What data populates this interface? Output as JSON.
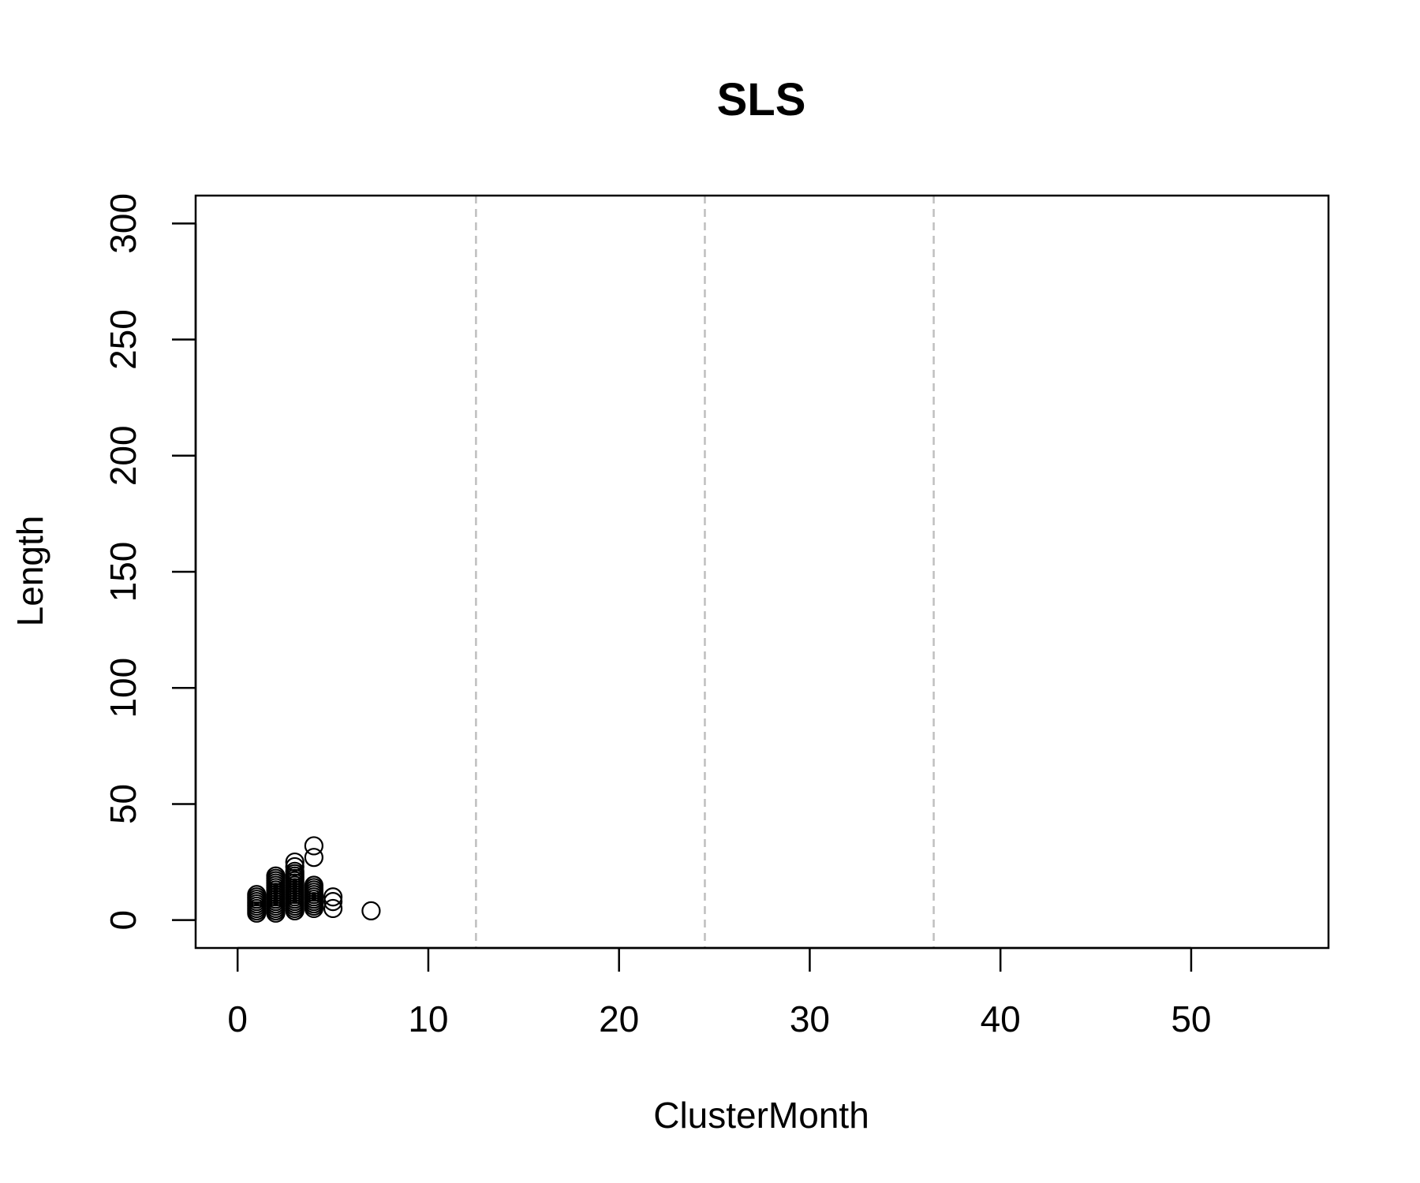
{
  "chart_data": {
    "type": "scatter",
    "title": "SLS",
    "xlabel": "ClusterMonth",
    "ylabel": "Length",
    "xlim": [
      -2.2,
      57.2
    ],
    "ylim": [
      -12,
      312
    ],
    "x_ticks": [
      0,
      10,
      20,
      30,
      40,
      50
    ],
    "y_ticks": [
      0,
      50,
      100,
      150,
      200,
      250,
      300
    ],
    "x_tick_labels": [
      "0",
      "10",
      "20",
      "30",
      "40",
      "50"
    ],
    "y_tick_labels": [
      "0",
      "50",
      "100",
      "150",
      "200",
      "250",
      "300"
    ],
    "vlines": [
      12.5,
      24.5,
      36.5
    ],
    "grid": false,
    "marker": "open-circle",
    "points": [
      {
        "x": 1,
        "y": 3
      },
      {
        "x": 1,
        "y": 4
      },
      {
        "x": 1,
        "y": 5
      },
      {
        "x": 1,
        "y": 6
      },
      {
        "x": 1,
        "y": 7
      },
      {
        "x": 1,
        "y": 8
      },
      {
        "x": 1,
        "y": 9
      },
      {
        "x": 1,
        "y": 10
      },
      {
        "x": 1,
        "y": 11
      },
      {
        "x": 2,
        "y": 3
      },
      {
        "x": 2,
        "y": 4
      },
      {
        "x": 2,
        "y": 5
      },
      {
        "x": 2,
        "y": 6
      },
      {
        "x": 2,
        "y": 7
      },
      {
        "x": 2,
        "y": 8
      },
      {
        "x": 2,
        "y": 9
      },
      {
        "x": 2,
        "y": 10
      },
      {
        "x": 2,
        "y": 11
      },
      {
        "x": 2,
        "y": 12
      },
      {
        "x": 2,
        "y": 13
      },
      {
        "x": 2,
        "y": 14
      },
      {
        "x": 2,
        "y": 15
      },
      {
        "x": 2,
        "y": 16
      },
      {
        "x": 2,
        "y": 17
      },
      {
        "x": 2,
        "y": 18
      },
      {
        "x": 2,
        "y": 19
      },
      {
        "x": 3,
        "y": 4
      },
      {
        "x": 3,
        "y": 5
      },
      {
        "x": 3,
        "y": 6
      },
      {
        "x": 3,
        "y": 7
      },
      {
        "x": 3,
        "y": 8
      },
      {
        "x": 3,
        "y": 9
      },
      {
        "x": 3,
        "y": 10
      },
      {
        "x": 3,
        "y": 11
      },
      {
        "x": 3,
        "y": 12
      },
      {
        "x": 3,
        "y": 13
      },
      {
        "x": 3,
        "y": 14
      },
      {
        "x": 3,
        "y": 15
      },
      {
        "x": 3,
        "y": 16
      },
      {
        "x": 3,
        "y": 17
      },
      {
        "x": 3,
        "y": 18
      },
      {
        "x": 3,
        "y": 19
      },
      {
        "x": 3,
        "y": 20
      },
      {
        "x": 3,
        "y": 21
      },
      {
        "x": 3,
        "y": 23
      },
      {
        "x": 3,
        "y": 25
      },
      {
        "x": 4,
        "y": 5
      },
      {
        "x": 4,
        "y": 6
      },
      {
        "x": 4,
        "y": 7
      },
      {
        "x": 4,
        "y": 8
      },
      {
        "x": 4,
        "y": 9
      },
      {
        "x": 4,
        "y": 10
      },
      {
        "x": 4,
        "y": 11
      },
      {
        "x": 4,
        "y": 12
      },
      {
        "x": 4,
        "y": 13
      },
      {
        "x": 4,
        "y": 14
      },
      {
        "x": 4,
        "y": 15
      },
      {
        "x": 4,
        "y": 27
      },
      {
        "x": 4,
        "y": 32
      },
      {
        "x": 5,
        "y": 5
      },
      {
        "x": 5,
        "y": 8
      },
      {
        "x": 5,
        "y": 10
      },
      {
        "x": 7,
        "y": 4
      }
    ]
  }
}
